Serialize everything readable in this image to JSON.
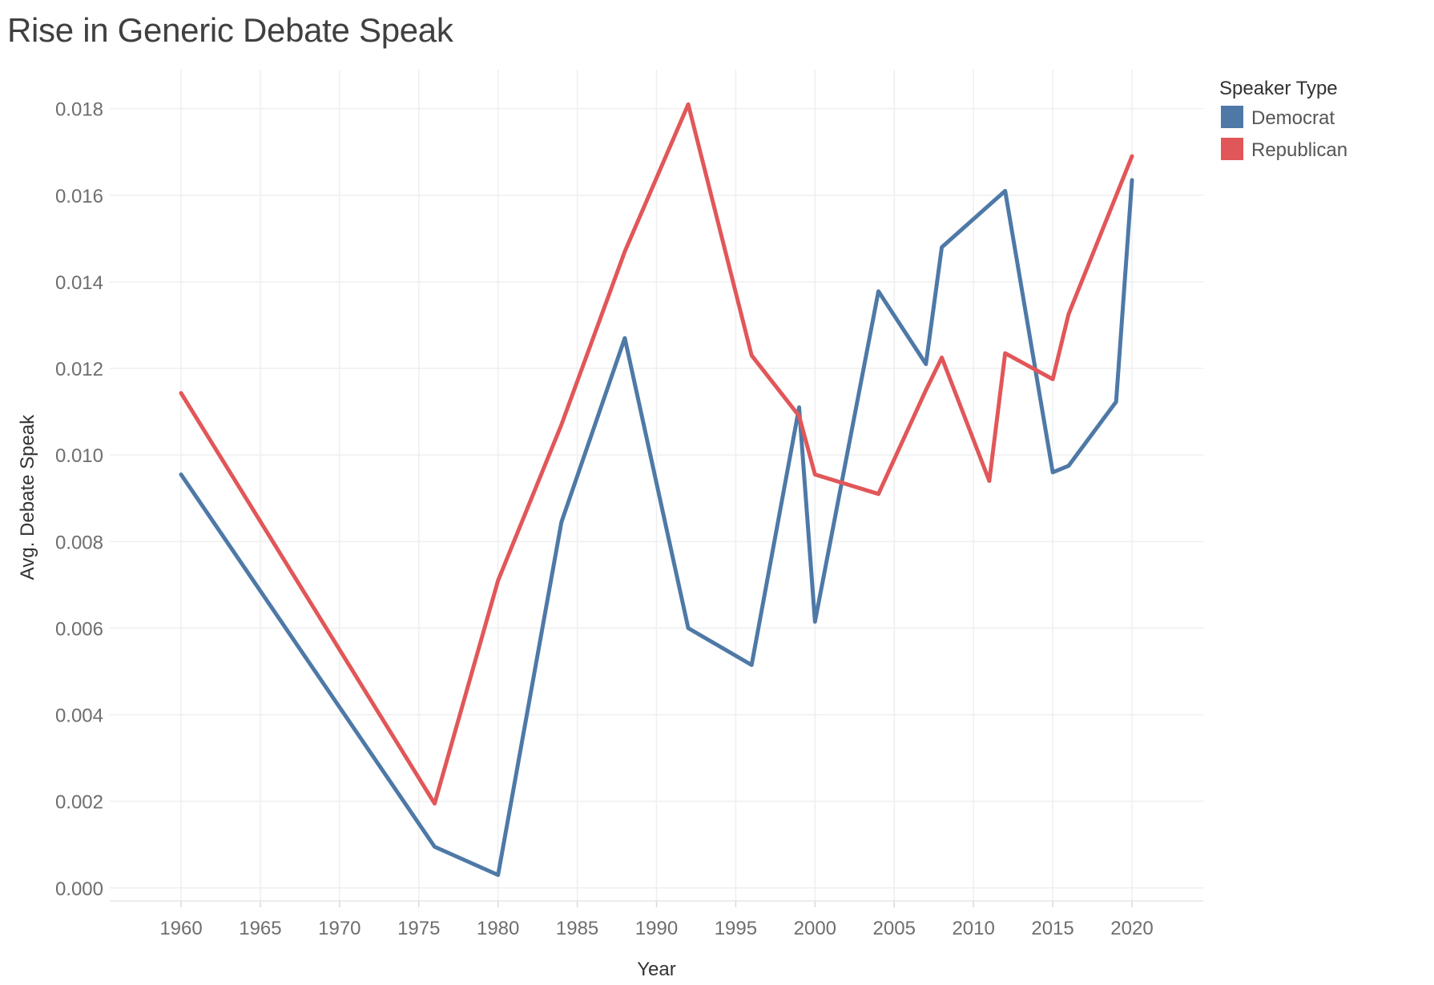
{
  "chart_data": {
    "type": "line",
    "title": "Rise in Generic Debate Speak",
    "xlabel": "Year",
    "ylabel": "Avg. Debate Speak",
    "xlim": [
      1955.5,
      2024.5
    ],
    "ylim": [
      -0.0003,
      0.0189
    ],
    "x_ticks": [
      1960,
      1965,
      1970,
      1975,
      1980,
      1985,
      1990,
      1995,
      2000,
      2005,
      2010,
      2015,
      2020
    ],
    "y_ticks": [
      0,
      0.002,
      0.004,
      0.006,
      0.008,
      0.01,
      0.012,
      0.014,
      0.016,
      0.018
    ],
    "y_tick_labels": [
      "0.000",
      "0.002",
      "0.004",
      "0.006",
      "0.008",
      "0.010",
      "0.012",
      "0.014",
      "0.016",
      "0.018"
    ],
    "grid": true,
    "legend": {
      "title": "Speaker Type",
      "position": "top-right"
    },
    "series": [
      {
        "name": "Democrat",
        "color": "#4e79a7",
        "x": [
          1960,
          1976,
          1980,
          1984,
          1988,
          1992,
          1996,
          1999,
          2000,
          2004,
          2007,
          2008,
          2012,
          2015,
          2016,
          2019,
          2020
        ],
        "y": [
          0.00955,
          0.00095,
          0.0003,
          0.00845,
          0.0127,
          0.006,
          0.00515,
          0.0111,
          0.00615,
          0.01378,
          0.0121,
          0.0148,
          0.0161,
          0.0096,
          0.00975,
          0.01123,
          0.01635
        ]
      },
      {
        "name": "Republican",
        "color": "#e15759",
        "x": [
          1960,
          1976,
          1980,
          1984,
          1988,
          1992,
          1996,
          1999,
          2000,
          2004,
          2007,
          2008,
          2011,
          2012,
          2015,
          2016,
          2020
        ],
        "y": [
          0.01143,
          0.00195,
          0.0071,
          0.0107,
          0.0147,
          0.0181,
          0.0123,
          0.0109,
          0.00955,
          0.0091,
          0.0115,
          0.01225,
          0.0094,
          0.01235,
          0.01175,
          0.01325,
          0.0169
        ]
      }
    ]
  }
}
